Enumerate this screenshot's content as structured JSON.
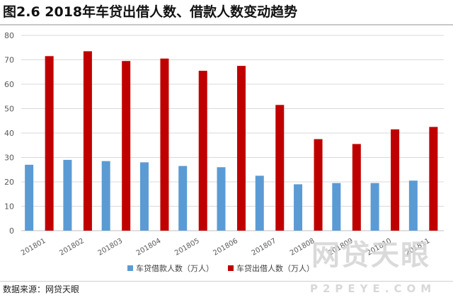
{
  "header": {
    "title": "图2.6  2018年车贷出借人数、借款人数变动趋势"
  },
  "footer": {
    "source": "数据来源：网贷天眼"
  },
  "watermark": {
    "main": "网贷天眼",
    "sub": "P2PEYE.COM"
  },
  "chart_data": {
    "type": "bar",
    "categories": [
      "201801",
      "201802",
      "201803",
      "201804",
      "201805",
      "201806",
      "201807",
      "201808",
      "201809",
      "201810",
      "201811"
    ],
    "series": [
      {
        "name": "车贷借款人数（万人）",
        "color": "#5b9bd5",
        "values": [
          27,
          29,
          28.5,
          28,
          26.5,
          26,
          22.5,
          19,
          19.5,
          19.5,
          20.5
        ]
      },
      {
        "name": "车贷出借人数（万人）",
        "color": "#c00000",
        "values": [
          71.5,
          73.5,
          69.5,
          70.5,
          65.5,
          67.5,
          51.5,
          37.5,
          35.5,
          41.5,
          42.5
        ]
      }
    ],
    "ylim": [
      0,
      80
    ],
    "yticks": [
      0,
      10,
      20,
      30,
      40,
      50,
      60,
      70,
      80
    ],
    "grid": true,
    "legend_position": "bottom",
    "title": "",
    "xlabel": "",
    "ylabel": ""
  }
}
